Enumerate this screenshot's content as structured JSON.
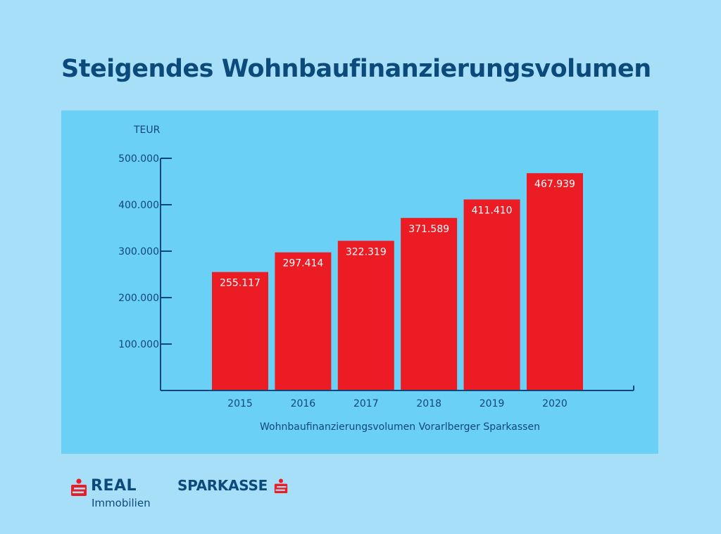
{
  "title": "Steigendes Wohnbaufinanzierungsvolumen",
  "colors": {
    "background": "#a8dff8",
    "panel": "#6bd0f5",
    "bar": "#ec1c24",
    "axis": "#10467a",
    "title": "#0c4a7c"
  },
  "chart_data": {
    "type": "bar",
    "unit_label": "TEUR",
    "categories": [
      "2015",
      "2016",
      "2017",
      "2018",
      "2019",
      "2020"
    ],
    "values": [
      255117,
      297414,
      322319,
      371589,
      411410,
      467939
    ],
    "value_labels": [
      "255.117",
      "297.414",
      "322.319",
      "371.589",
      "411.410",
      "467.939"
    ],
    "yticks": [
      100000,
      200000,
      300000,
      400000,
      500000
    ],
    "ytick_labels": [
      "100.000",
      "200.000",
      "300.000",
      "400.000",
      "500.000"
    ],
    "ylim": [
      0,
      500000
    ],
    "xlabel": "Wohnbaufinanzierungsvolumen Vorarlberger Sparkassen",
    "ylabel": "TEUR",
    "grid": false,
    "legend": "none"
  },
  "logos": {
    "real": {
      "name": "REAL",
      "subtitle": "Immobilien",
      "icon": "sparkasse-s-icon"
    },
    "sparkasse": {
      "name": "SPARKASSE",
      "icon": "sparkasse-s-icon"
    }
  }
}
